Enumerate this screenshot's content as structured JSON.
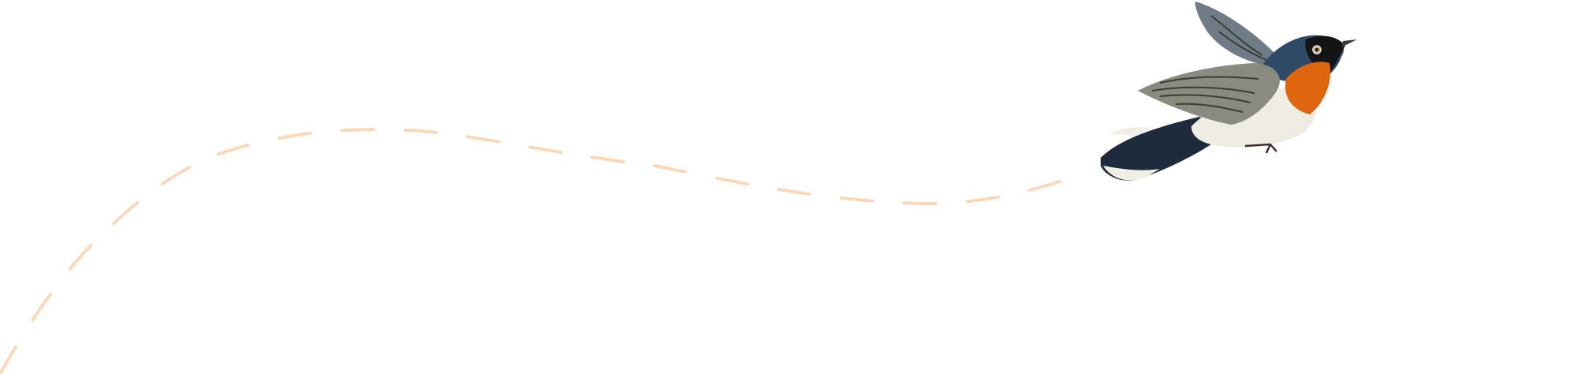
{
  "illustration": {
    "subject_icon": "flying-bird-icon",
    "path_icon": "dashed-flight-path-icon"
  },
  "colors": {
    "background": "#ffffff",
    "flight_path": "#fbd9b8",
    "bird_back": "#2f4a66",
    "bird_throat": "#e0650f",
    "bird_head_mask": "#141414",
    "bird_wing": "#8a8a80",
    "bird_belly": "#efece4"
  }
}
